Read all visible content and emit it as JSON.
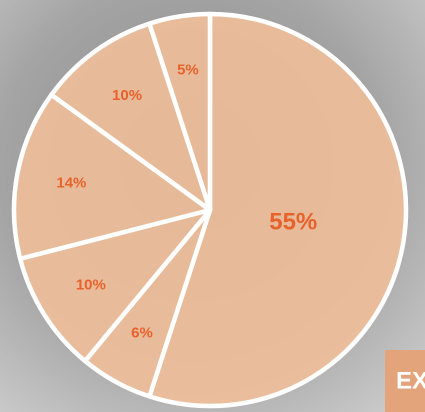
{
  "chart_data": {
    "type": "pie",
    "categories": [
      null,
      null,
      null,
      null,
      null,
      null
    ],
    "values": [
      55,
      6,
      10,
      14,
      10,
      5
    ],
    "value_labels": [
      "55%",
      "6%",
      "10%",
      "14%",
      "10%",
      "5%"
    ],
    "color": "#efbf99",
    "label_color": "#e8622c",
    "annotation": "EX"
  }
}
